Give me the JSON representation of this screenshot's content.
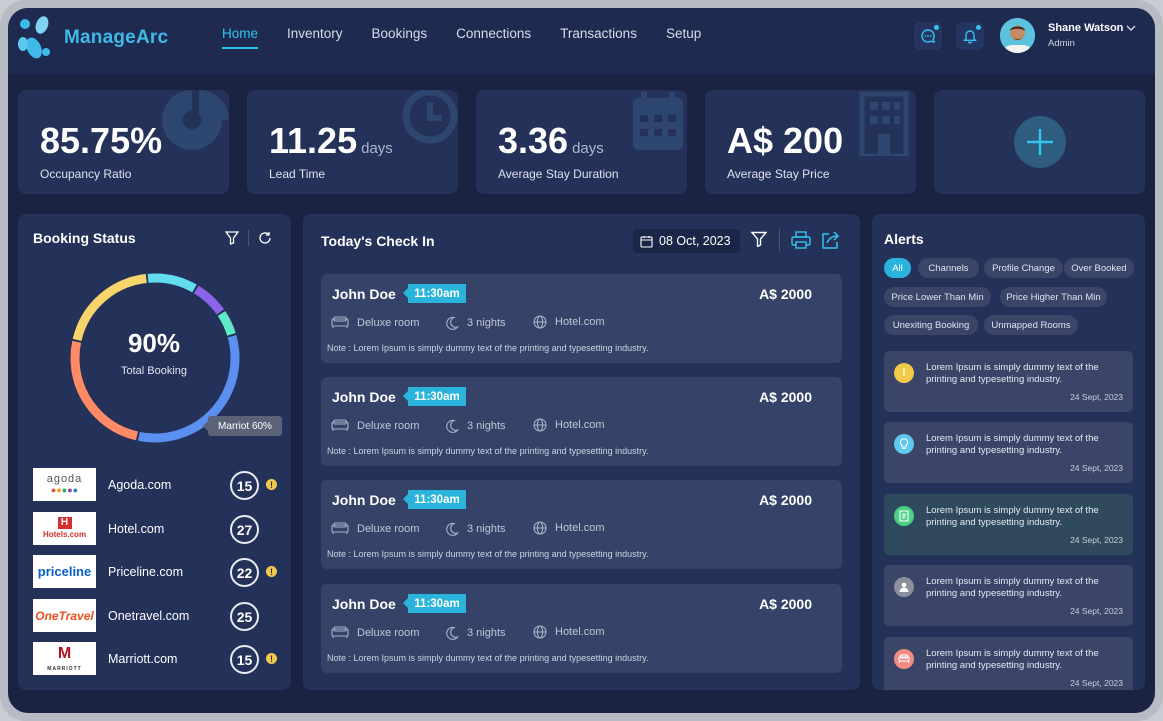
{
  "app": {
    "name": "ManageArc"
  },
  "nav": [
    {
      "label": "Home",
      "active": true
    },
    {
      "label": "Inventory",
      "active": false
    },
    {
      "label": "Bookings",
      "active": false
    },
    {
      "label": "Connections",
      "active": false
    },
    {
      "label": "Transactions",
      "active": false
    },
    {
      "label": "Setup",
      "active": false
    }
  ],
  "user": {
    "name": "Shane Watson",
    "role": "Admin"
  },
  "stats": [
    {
      "value": "85.75%",
      "unit": "",
      "label": "Occupancy Ratio",
      "icon": "pie-chart-icon"
    },
    {
      "value": "11.25",
      "unit": "days",
      "label": "Lead Time",
      "icon": "clock-icon"
    },
    {
      "value": "3.36",
      "unit": "days",
      "label": "Average Stay Duration",
      "icon": "calendar-icon"
    },
    {
      "value": "A$ 200",
      "unit": "",
      "label": "Average Stay Price",
      "icon": "building-icon"
    }
  ],
  "booking_status": {
    "title": "Booking Status",
    "percent": "90%",
    "percent_label": "Total Booking",
    "tooltip": "Marriot 60%",
    "segments": [
      {
        "color": "#62ddf0",
        "value": 10
      },
      {
        "color": "#8a63e8",
        "value": 7
      },
      {
        "color": "#5fe8c8",
        "value": 5
      },
      {
        "color": "#5b8ff0",
        "value": 33
      },
      {
        "color": "#ff8a65",
        "value": 25
      },
      {
        "color": "#f8d56a",
        "value": 20
      }
    ],
    "channels": [
      {
        "name": "Agoda.com",
        "logo": "agoda",
        "count": "15",
        "warn": true
      },
      {
        "name": "Hotel.com",
        "logo": "Hotels.com",
        "count": "27",
        "warn": false
      },
      {
        "name": "Priceline.com",
        "logo": "priceline",
        "count": "22",
        "warn": true
      },
      {
        "name": "Onetravel.com",
        "logo": "OneTravel",
        "count": "25",
        "warn": false
      },
      {
        "name": "Marriott.com",
        "logo": "MARRIOTT",
        "count": "15",
        "warn": true
      }
    ]
  },
  "checkin": {
    "title": "Today's Check In",
    "date": "08 Oct, 2023",
    "items": [
      {
        "name": "John Doe",
        "time": "11:30am",
        "price": "A$ 2000",
        "room": "Deluxe  room",
        "nights": "3 nights",
        "source": "Hotel.com",
        "note": "Note : Lorem Ipsum is simply dummy text of the printing and typesetting industry."
      },
      {
        "name": "John Doe",
        "time": "11:30am",
        "price": "A$ 2000",
        "room": "Deluxe  room",
        "nights": "3 nights",
        "source": "Hotel.com",
        "note": "Note : Lorem Ipsum is simply dummy text of the printing and typesetting industry."
      },
      {
        "name": "John Doe",
        "time": "11:30am",
        "price": "A$ 2000",
        "room": "Deluxe  room",
        "nights": "3 nights",
        "source": "Hotel.com",
        "note": "Note : Lorem Ipsum is simply dummy text of the printing and typesetting industry."
      },
      {
        "name": "John Doe",
        "time": "11:30am",
        "price": "A$ 2000",
        "room": "Deluxe  room",
        "nights": "3 nights",
        "source": "Hotel.com",
        "note": "Note : Lorem Ipsum is simply dummy text of the printing and typesetting industry."
      }
    ]
  },
  "alerts": {
    "title": "Alerts",
    "filters": [
      "All",
      "Channels",
      "Profile Change",
      "Over Booked",
      "Price Lower Than Min",
      "Price Higher Than Min",
      "Unexiting Booking",
      "Unmapped Rooms"
    ],
    "items": [
      {
        "text": "Lorem Ipsum is simply dummy text of the printing and typesetting industry.",
        "date": "24 Sept, 2023",
        "icon_color": "#f3c94a",
        "icon": "warning-icon"
      },
      {
        "text": "Lorem Ipsum is simply dummy text of the printing and typesetting industry.",
        "date": "24 Sept, 2023",
        "icon_color": "#5ec8f0",
        "icon": "lightbulb-icon"
      },
      {
        "text": "Lorem Ipsum is simply dummy text of the printing and typesetting industry.",
        "date": "24 Sept, 2023",
        "icon_color": "#4fd08a",
        "icon": "document-icon"
      },
      {
        "text": "Lorem Ipsum is simply dummy text of the printing and typesetting industry.",
        "date": "24 Sept, 2023",
        "icon_color": "#8a8f9c",
        "icon": "user-icon"
      },
      {
        "text": "Lorem Ipsum is simply dummy text of the printing and typesetting industry.",
        "date": "24 Sept, 2023",
        "icon_color": "#f28b82",
        "icon": "bed-icon"
      }
    ]
  }
}
